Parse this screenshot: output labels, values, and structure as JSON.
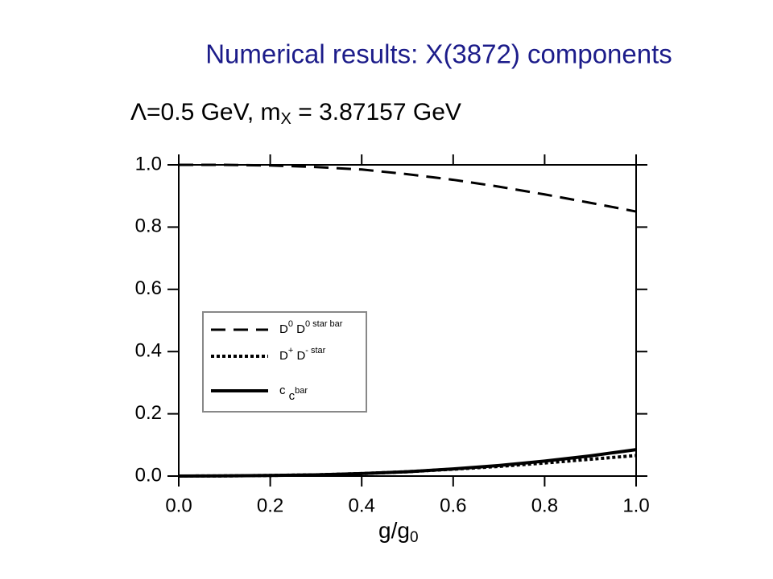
{
  "chart_data": {
    "type": "line",
    "title": "Numerical results: X(3872) components",
    "subtitle": {
      "text": "Λ=0.5 GeV,  m",
      "sub": "X",
      "tail": " = 3.87157 GeV"
    },
    "xlabel": {
      "text": "g/g",
      "sub": "0"
    },
    "x": [
      0,
      0.1,
      0.2,
      0.3,
      0.4,
      0.5,
      0.6,
      0.7,
      0.8,
      0.9,
      1.0
    ],
    "series": [
      {
        "name": [
          {
            "text": "D",
            "sup": "0"
          },
          {
            "text": " D",
            "sup": "0 star bar"
          }
        ],
        "color": "#000000",
        "style": "dashed",
        "values": [
          1.0,
          1.0,
          0.998,
          0.993,
          0.985,
          0.97,
          0.952,
          0.93,
          0.905,
          0.878,
          0.85
        ]
      },
      {
        "name": [
          {
            "text": "D",
            "sup": "+"
          },
          {
            "text": " D",
            "sup": "- star"
          }
        ],
        "color": "#000000",
        "style": "dotted",
        "values": [
          0,
          0.0005,
          0.002,
          0.004,
          0.008,
          0.014,
          0.022,
          0.031,
          0.042,
          0.054,
          0.066
        ]
      },
      {
        "name": [
          {
            "text": "c",
            "sup": ""
          },
          {
            "text": " c",
            "sup": "bar"
          }
        ],
        "color": "#000000",
        "style": "solid",
        "values": [
          0,
          0.0005,
          0.002,
          0.004,
          0.008,
          0.014,
          0.023,
          0.034,
          0.048,
          0.065,
          0.085
        ]
      }
    ],
    "xlim": [
      0,
      1
    ],
    "ylim": [
      0,
      1
    ],
    "xticks": [
      {
        "value": 0,
        "label": "0.0"
      },
      {
        "value": 0.2,
        "label": "0.2"
      },
      {
        "value": 0.4,
        "label": "0.4"
      },
      {
        "value": 0.6,
        "label": "0.6"
      },
      {
        "value": 0.8,
        "label": "0.8"
      },
      {
        "value": 1,
        "label": "1.0"
      }
    ],
    "yticks": [
      {
        "value": 0,
        "label": "0.0"
      },
      {
        "value": 0.2,
        "label": "0.2"
      },
      {
        "value": 0.4,
        "label": "0.4"
      },
      {
        "value": 0.6,
        "label": "0.6"
      },
      {
        "value": 0.8,
        "label": "0.8"
      },
      {
        "value": 1,
        "label": "1.0"
      }
    ],
    "grid": false
  }
}
